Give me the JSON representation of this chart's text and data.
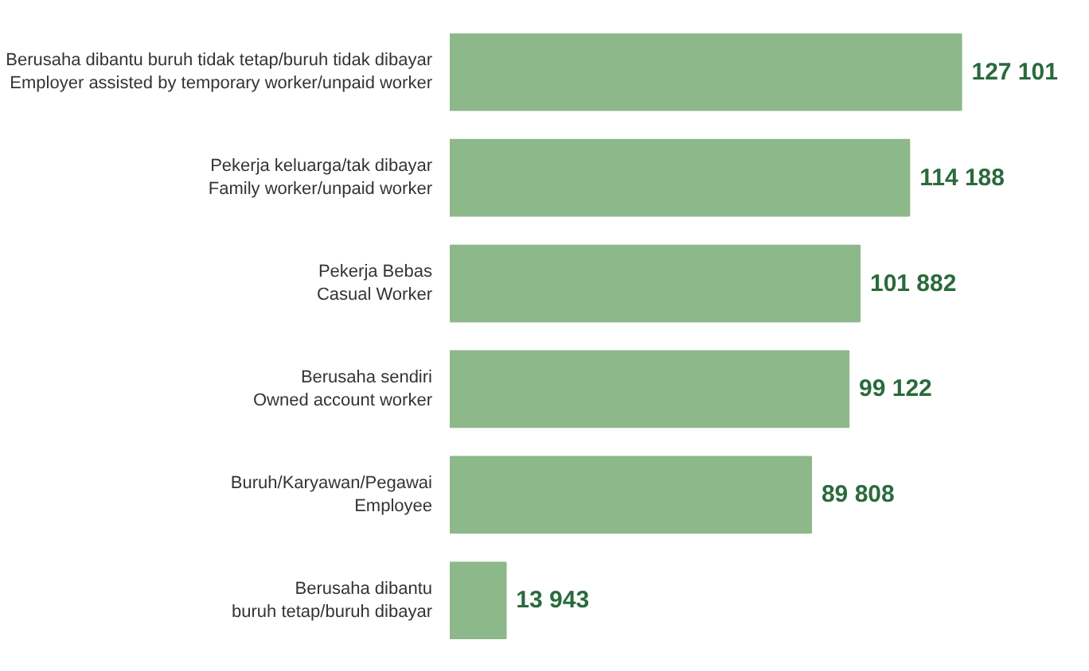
{
  "chart_data": {
    "type": "bar",
    "orientation": "horizontal",
    "categories": [
      "Berusaha dibantu buruh tidak tetap/buruh tidak dibayar\nEmployer assisted by temporary worker/unpaid worker",
      "Pekerja keluarga/tak dibayar\nFamily worker/unpaid worker",
      "Pekerja Bebas\nCasual Worker",
      "Berusaha sendiri\nOwned account worker",
      "Buruh/Karyawan/Pegawai\nEmployee",
      "Berusaha dibantu\nburuh tetap/buruh dibayar"
    ],
    "values": [
      127101,
      114188,
      101882,
      99122,
      89808,
      13943
    ],
    "value_labels": [
      "127 101",
      "114 188",
      "101 882",
      "99 122",
      "89 808",
      "13 943"
    ],
    "color": "#8db88a",
    "grid": false,
    "tick_labels": "y"
  }
}
